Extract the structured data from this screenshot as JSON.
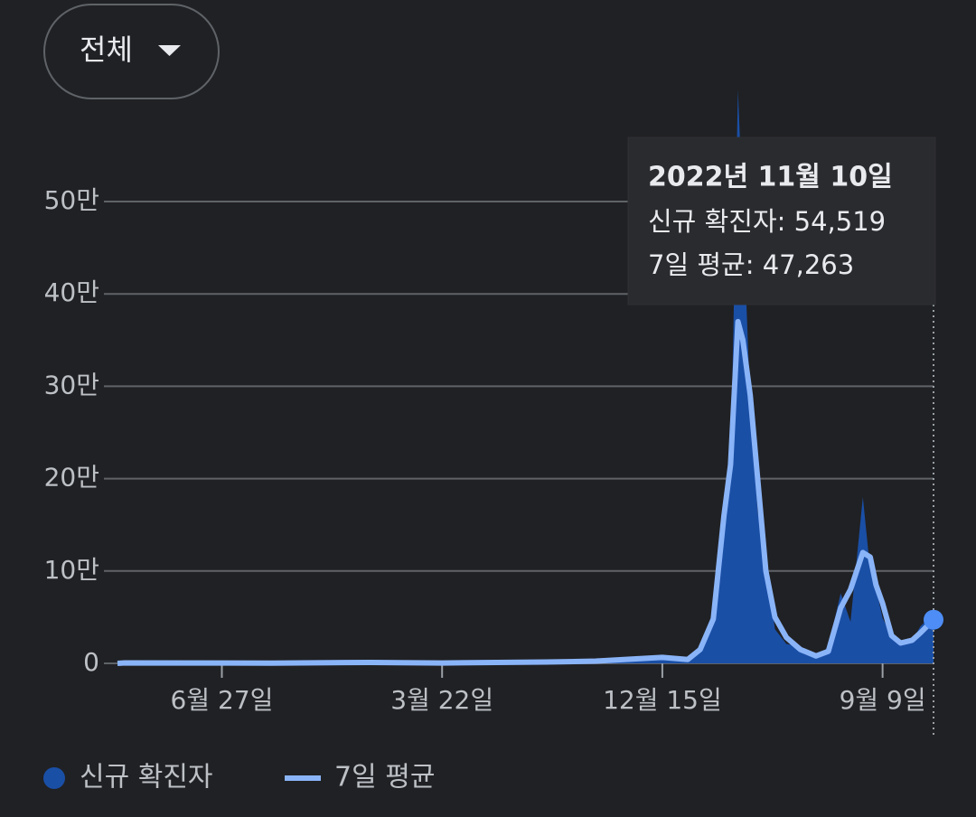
{
  "filter": {
    "label": "전체"
  },
  "chart_data": {
    "type": "area-line",
    "x": [
      "2020-02-21",
      "2020-03-01",
      "2020-08-27",
      "2020-12-25",
      "2021-03-22",
      "2021-07-27",
      "2021-09-25",
      "2021-12-15",
      "2022-01-15",
      "2022-01-30",
      "2022-02-15",
      "2022-02-28",
      "2022-03-08",
      "2022-03-17",
      "2022-03-23",
      "2022-04-01",
      "2022-04-10",
      "2022-04-20",
      "2022-05-01",
      "2022-05-15",
      "2022-06-01",
      "2022-06-20",
      "2022-07-05",
      "2022-07-20",
      "2022-08-01",
      "2022-08-16",
      "2022-08-25",
      "2022-09-01",
      "2022-09-09",
      "2022-09-20",
      "2022-10-01",
      "2022-10-15",
      "2022-10-25",
      "2022-11-10"
    ],
    "series": [
      {
        "name": "신규 확진자",
        "color": "#1a4fa6",
        "values": [
          100,
          600,
          441,
          1240,
          400,
          1896,
          3272,
          7850,
          4400,
          17500,
          57000,
          139000,
          202000,
          621000,
          490000,
          280000,
          164000,
          111000,
          37000,
          21000,
          18000,
          6000,
          18000,
          76000,
          45000,
          180000,
          100000,
          81000,
          49000,
          30000,
          24000,
          25000,
          40000,
          54519
        ]
      },
      {
        "name": "7일 평균",
        "color": "#8ab4f8",
        "values": [
          50,
          500,
          300,
          1000,
          400,
          1500,
          2400,
          6500,
          4200,
          15000,
          48000,
          160000,
          215000,
          370000,
          350000,
          290000,
          200000,
          100000,
          50000,
          28000,
          15000,
          8000,
          13000,
          60000,
          80000,
          120000,
          115000,
          85000,
          65000,
          30000,
          22000,
          25000,
          33000,
          47263
        ]
      }
    ],
    "xlim": [
      "2020-02-21",
      "2022-11-10"
    ],
    "xticks": [
      {
        "value": "2020-06-27",
        "label": "6월 27일"
      },
      {
        "value": "2021-03-22",
        "label": "3월 22일"
      },
      {
        "value": "2021-12-15",
        "label": "12월 15일"
      },
      {
        "value": "2022-09-09",
        "label": "9월 9일"
      }
    ],
    "ylim": [
      0,
      500000
    ],
    "yticks": [
      0,
      {
        "value": 100000,
        "label": "10만"
      },
      {
        "value": 200000,
        "label": "20만"
      },
      {
        "value": 300000,
        "label": "30만"
      },
      {
        "value": 400000,
        "label": "40만"
      },
      {
        "value": 500000,
        "label": "50만"
      }
    ],
    "grid": true,
    "legend": "bottom",
    "tooltip": {
      "title": "2022년 11월 10일",
      "labels": [
        "54,519",
        "47,263"
      ]
    }
  }
}
